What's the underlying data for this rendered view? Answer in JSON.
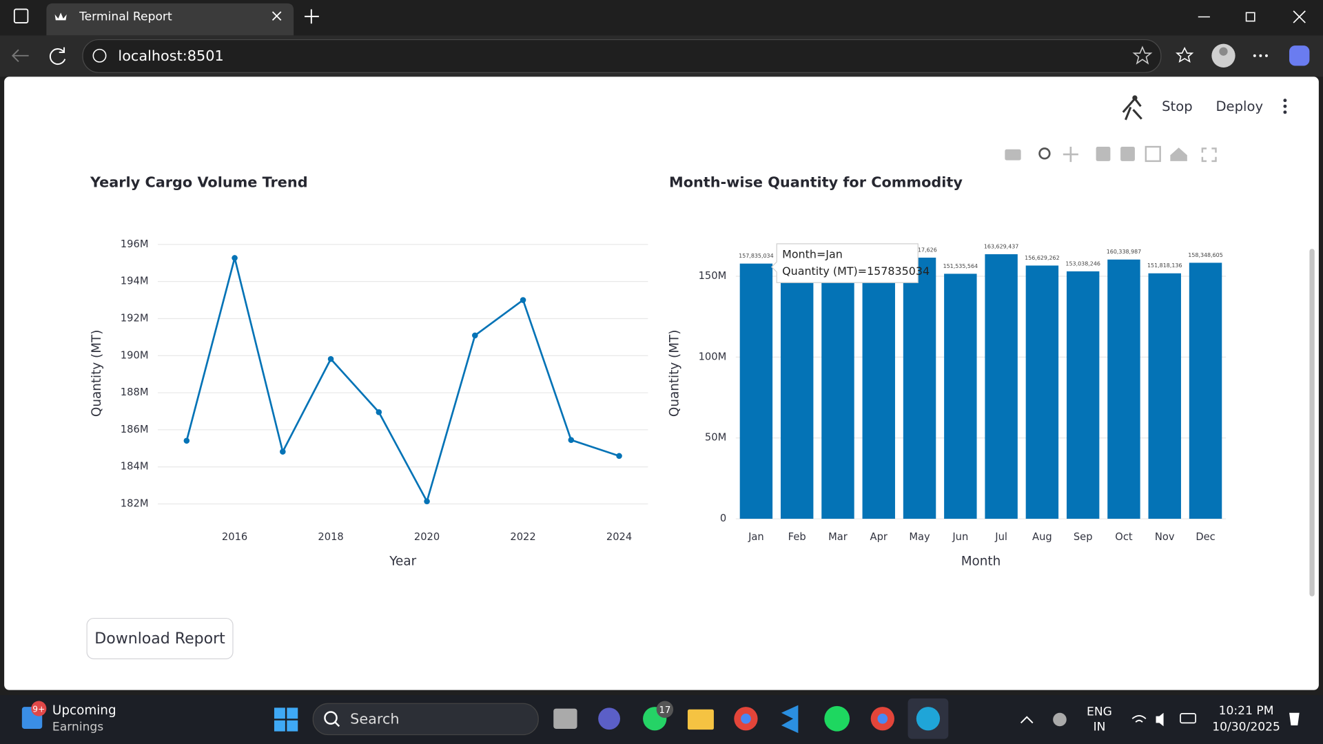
{
  "browser": {
    "tab_title": "Terminal Report",
    "url": "localhost:8501"
  },
  "app": {
    "stop": "Stop",
    "deploy": "Deploy",
    "download_button": "Download Report"
  },
  "chart_data": [
    {
      "type": "line",
      "title": "Yearly Cargo Volume Trend",
      "x_label": "Year",
      "y_label": "Quantity (MT)",
      "x": [
        2015,
        2016,
        2017,
        2018,
        2019,
        2020,
        2021,
        2022,
        2023,
        2024
      ],
      "values": [
        185410000,
        195270000,
        184820000,
        189820000,
        186950000,
        182140000,
        191090000,
        193000000,
        185450000,
        184590000
      ],
      "color": "#0473b6",
      "xlim": [
        2014.4,
        2024.6
      ],
      "xticks": [
        2016,
        2018,
        2020,
        2022,
        2024
      ],
      "ylim": [
        181200000,
        196900000
      ],
      "yticks": [
        {
          "value": 182000000,
          "label": "182M"
        },
        {
          "value": 184000000,
          "label": "184M"
        },
        {
          "value": 186000000,
          "label": "186M"
        },
        {
          "value": 188000000,
          "label": "188M"
        },
        {
          "value": 190000000,
          "label": "190M"
        },
        {
          "value": 192000000,
          "label": "192M"
        },
        {
          "value": 194000000,
          "label": "194M"
        },
        {
          "value": 196000000,
          "label": "196M"
        }
      ],
      "grid": true
    },
    {
      "type": "bar",
      "title": "Month-wise Quantity for Commodity",
      "x_label": "Month",
      "y_label": "Quantity (MT)",
      "categories": [
        "Jan",
        "Feb",
        "Mar",
        "Apr",
        "May",
        "Jun",
        "Jul",
        "Aug",
        "Sep",
        "Oct",
        "Nov",
        "Dec"
      ],
      "values": [
        157835034,
        154000000,
        156000000,
        155000000,
        161517626,
        151535564,
        163629437,
        156629262,
        153038246,
        160338987,
        151818136,
        158348605
      ],
      "value_labels": [
        "157,835,034",
        null,
        null,
        null,
        "161,517,626",
        "151,535,564",
        "163,629,437",
        "156,629,262",
        "153,038,246",
        "160,338,987",
        "151,818,136",
        "158,348,605"
      ],
      "color": "#0473b6",
      "ylim": [
        0,
        180000000
      ],
      "yticks": [
        0,
        {
          "value": 50000000,
          "label": "50M"
        },
        {
          "value": 100000000,
          "label": "100M"
        },
        {
          "value": 150000000,
          "label": "150M"
        }
      ],
      "grid": true,
      "tooltip": [
        "Month=Jan",
        "Quantity (MT)=157835034"
      ]
    }
  ],
  "taskbar": {
    "widget_badge": "9+",
    "widget_line1": "Upcoming",
    "widget_line2": "Earnings",
    "search": "Search",
    "whatsapp_badge": "17",
    "lang1": "ENG",
    "lang2": "IN",
    "time": "10:21 PM",
    "date": "10/30/2025"
  }
}
